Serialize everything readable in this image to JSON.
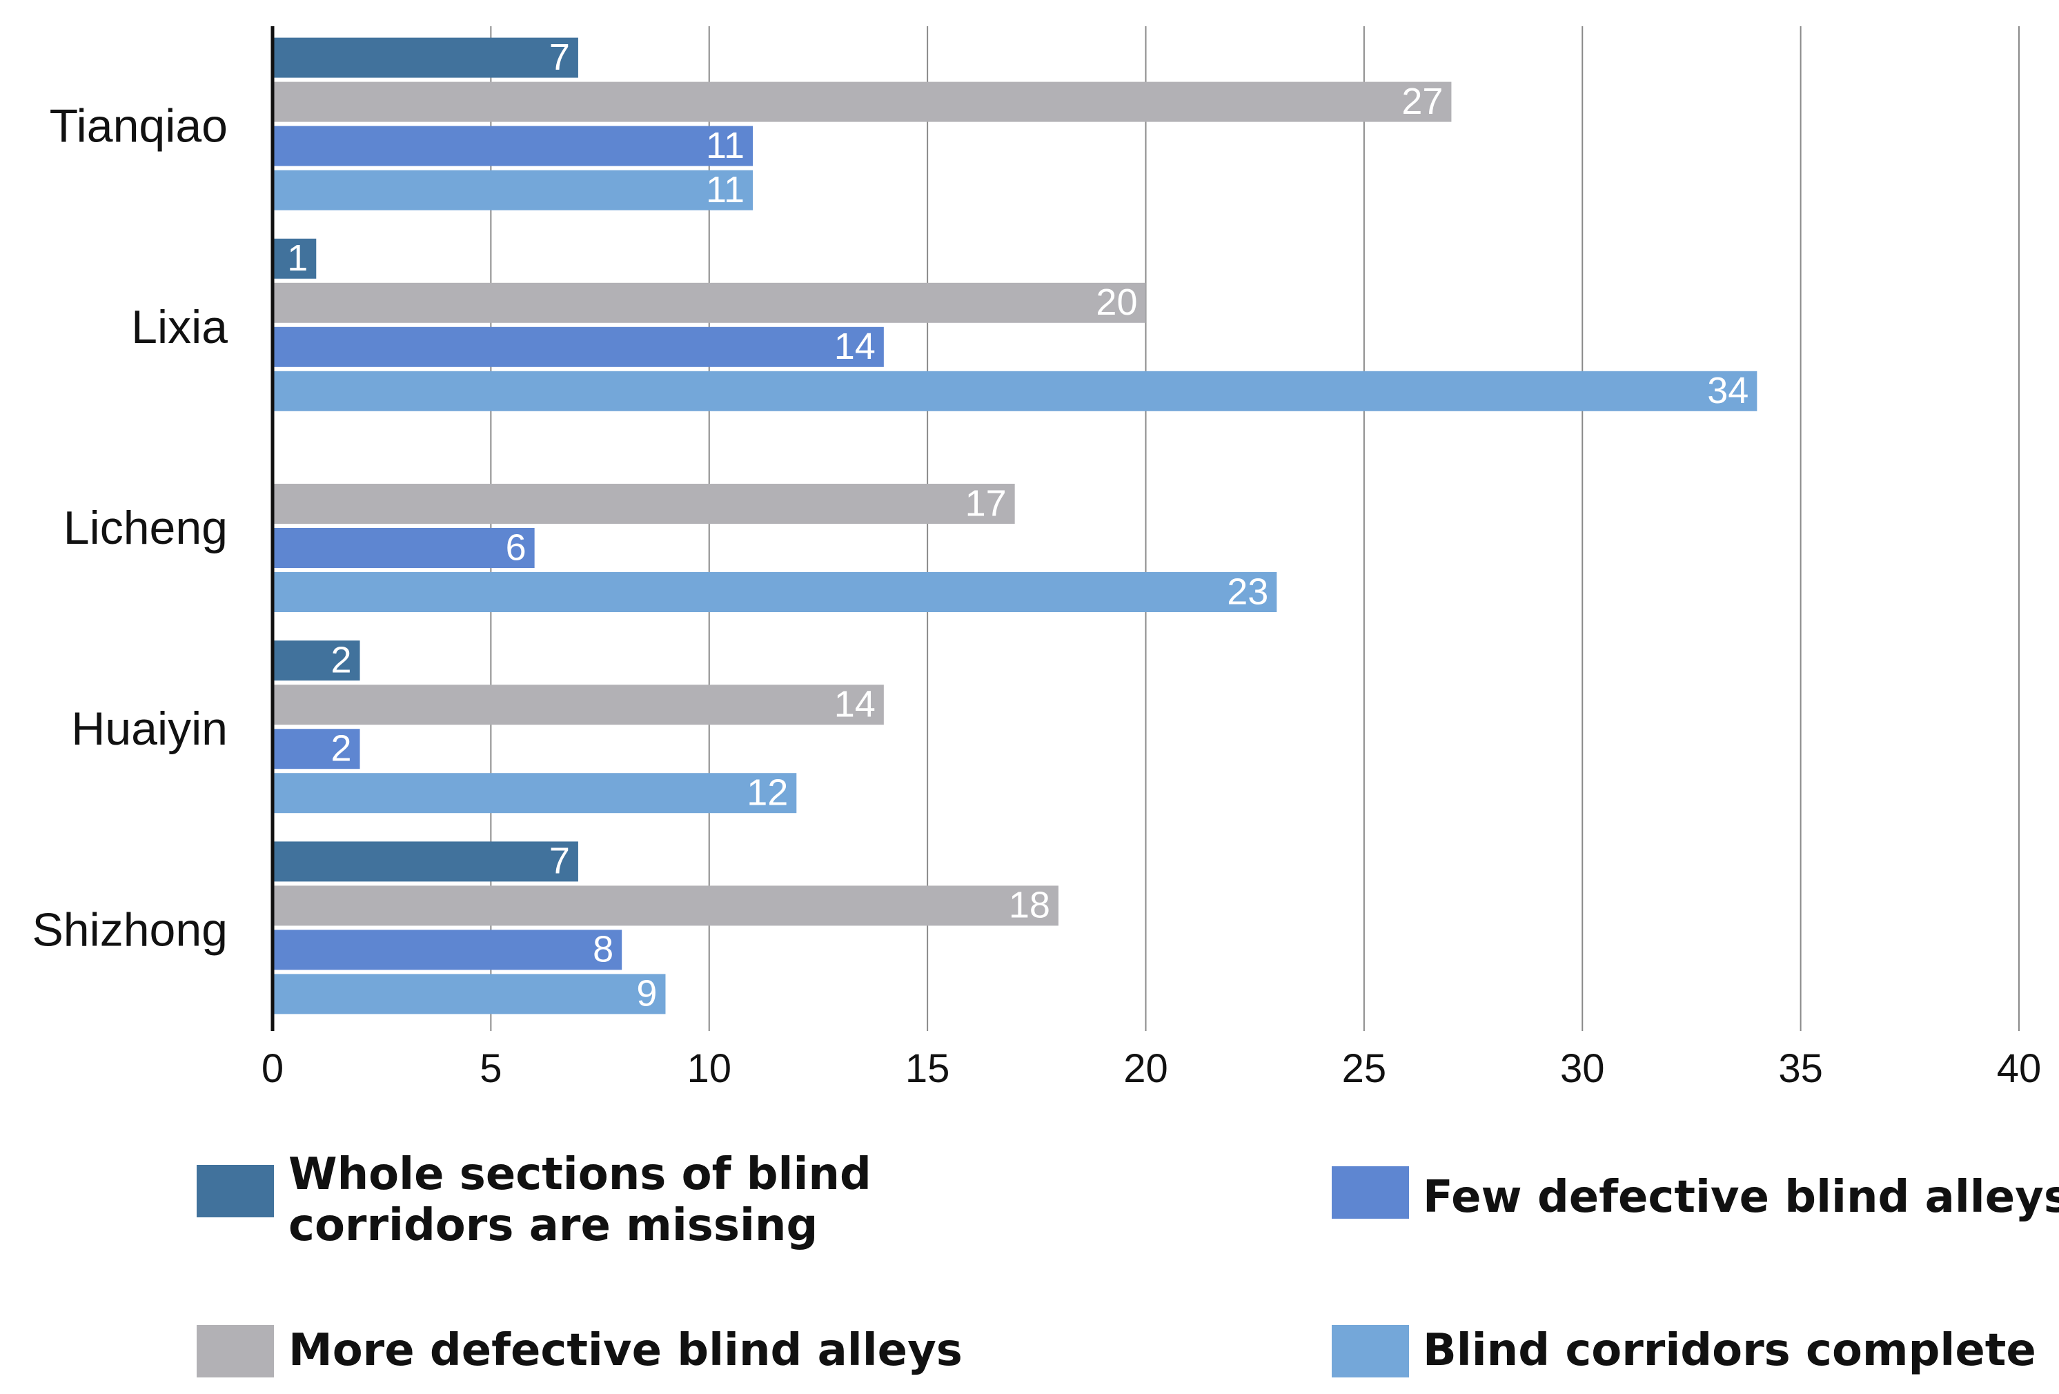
{
  "chart_data": {
    "type": "bar",
    "orientation": "horizontal",
    "categories": [
      "Tianqiao",
      "Lixia",
      "Licheng",
      "Huaiyin",
      "Shizhong"
    ],
    "series": [
      {
        "name": "Whole sections of blind corridors are missing",
        "name_lines": [
          "Whole sections of blind",
          "corridors are missing"
        ],
        "color": "#41729C",
        "values": [
          7,
          1,
          null,
          2,
          7
        ]
      },
      {
        "name": "More defective blind alleys",
        "name_lines": [
          "More defective blind alleys"
        ],
        "color": "#B2B1B5",
        "values": [
          27,
          20,
          17,
          14,
          18
        ]
      },
      {
        "name": "Few defective blind alleys",
        "name_lines": [
          "Few defective blind alleys"
        ],
        "color": "#5E86D1",
        "values": [
          11,
          14,
          6,
          2,
          8
        ]
      },
      {
        "name": "Blind corridors complete",
        "name_lines": [
          "Blind corridors complete"
        ],
        "color": "#74A7D9",
        "values": [
          11,
          34,
          23,
          12,
          9
        ]
      }
    ],
    "x_ticks": [
      0,
      5,
      10,
      15,
      20,
      25,
      30,
      35,
      40
    ],
    "xlim": [
      0,
      40
    ],
    "grid": "vertical",
    "legend_position": "bottom",
    "title": "",
    "xlabel": "",
    "ylabel": ""
  }
}
